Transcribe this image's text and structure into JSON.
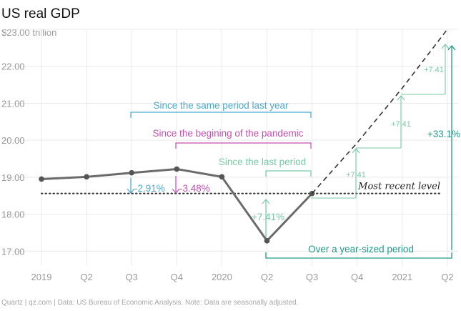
{
  "chart_data": {
    "type": "line",
    "title": "US real GDP",
    "y_unit_label": "$23.00 trillion",
    "ylim": [
      16.6,
      23.0
    ],
    "yticks": [
      "17.00",
      "18.00",
      "19.00",
      "20.00",
      "21.00",
      "22.00"
    ],
    "categories": [
      "2019",
      "Q2",
      "Q3",
      "Q4",
      "2020",
      "Q2",
      "Q3",
      "Q4",
      "2021",
      "Q2"
    ],
    "series": [
      {
        "style": "solid",
        "values": [
          18.95,
          19.01,
          19.12,
          19.22,
          19.01,
          17.28,
          18.56,
          null,
          null,
          null
        ]
      },
      {
        "style": "dashed",
        "values": [
          null,
          null,
          null,
          null,
          null,
          null,
          18.56,
          19.93,
          21.41,
          23.0
        ]
      }
    ],
    "reference_line": {
      "label": "Most recent level",
      "value": 18.56
    },
    "annotations": {
      "same_period": "Since the same period last year",
      "same_period_value": "-2.91%",
      "pandemic": "Since the begining of the pandemic",
      "pandemic_value": "-3.48%",
      "last_period": "Since the last period",
      "last_period_value": "+7.41%",
      "step1": "+7.41",
      "step2": "+7.41",
      "step3": "+7.41",
      "year_period": "Over a year-sized period",
      "year_value": "+33.1%"
    },
    "colors": {
      "line": "#6b6b6b",
      "blue": "#4aa8cf",
      "magenta": "#c44fb0",
      "mint": "#77c9a6",
      "teal": "#1f9a8a",
      "dotted": "#333333"
    },
    "source": "Quartz | qz.com | Data: US Bureau of Economic Analysis. Note: Data are seasonally adjusted."
  }
}
